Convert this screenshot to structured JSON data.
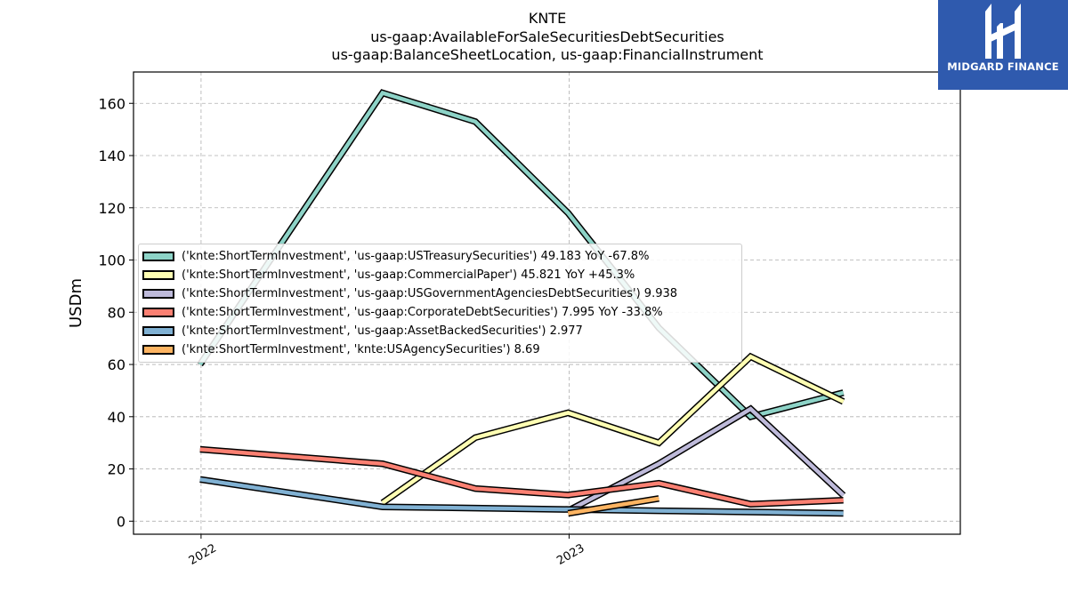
{
  "logo": {
    "text": "MIDGARD FINANCE"
  },
  "chart_data": {
    "type": "line",
    "title": "KNTE",
    "subtitle_lines": [
      "us-gaap:AvailableForSaleSecuritiesDebtSecurities",
      "us-gaap:BalanceSheetLocation, us-gaap:FinancialInstrument"
    ],
    "xlabel": "",
    "ylabel": "USDm",
    "ylim": [
      -5,
      172
    ],
    "xlim": [
      "2021-10-26",
      "2024-01-24"
    ],
    "yticks": [
      0,
      20,
      40,
      60,
      80,
      100,
      120,
      140,
      160
    ],
    "xticks": [
      {
        "label": "2022",
        "date": "2022-01-01"
      },
      {
        "label": "2023",
        "date": "2023-01-01"
      }
    ],
    "grid": true,
    "legend_position": "center-left",
    "series": [
      {
        "name": "('knte:ShortTermInvestment', 'us-gaap:USTreasurySecurities') 49.183 YoY -67.8%",
        "color": "#8dd3c7",
        "points": [
          [
            "2021-12-31",
            60
          ],
          [
            "2022-06-30",
            164
          ],
          [
            "2022-09-30",
            153
          ],
          [
            "2022-12-31",
            118
          ],
          [
            "2023-03-31",
            74
          ],
          [
            "2023-06-30",
            40
          ],
          [
            "2023-09-30",
            49.2
          ]
        ]
      },
      {
        "name": "('knte:ShortTermInvestment', 'us-gaap:CommercialPaper') 45.821 YoY +45.3%",
        "color": "#ffffb3",
        "points": [
          [
            "2022-06-30",
            7
          ],
          [
            "2022-09-30",
            32
          ],
          [
            "2022-12-31",
            41.5
          ],
          [
            "2023-03-31",
            30
          ],
          [
            "2023-06-30",
            63
          ],
          [
            "2023-09-30",
            45.8
          ]
        ]
      },
      {
        "name": "('knte:ShortTermInvestment', 'us-gaap:USGovernmentAgenciesDebtSecurities') 9.938",
        "color": "#bebada",
        "points": [
          [
            "2022-12-31",
            4
          ],
          [
            "2023-03-31",
            22
          ],
          [
            "2023-06-30",
            43
          ],
          [
            "2023-09-30",
            9.9
          ]
        ]
      },
      {
        "name": "('knte:ShortTermInvestment', 'us-gaap:CorporateDebtSecurities') 7.995 YoY -33.8%",
        "color": "#fb8072",
        "points": [
          [
            "2021-12-31",
            27.5
          ],
          [
            "2022-06-30",
            22
          ],
          [
            "2022-09-30",
            12.5
          ],
          [
            "2022-12-31",
            10
          ],
          [
            "2023-03-31",
            14.5
          ],
          [
            "2023-06-30",
            6.5
          ],
          [
            "2023-09-30",
            8.0
          ]
        ]
      },
      {
        "name": "('knte:ShortTermInvestment', 'us-gaap:AssetBackedSecurities') 2.977",
        "color": "#80b1d3",
        "points": [
          [
            "2021-12-31",
            16
          ],
          [
            "2022-06-30",
            5.5
          ],
          [
            "2022-09-30",
            5
          ],
          [
            "2022-12-31",
            4.5
          ],
          [
            "2023-03-31",
            4
          ],
          [
            "2023-06-30",
            3.5
          ],
          [
            "2023-09-30",
            3.0
          ]
        ]
      },
      {
        "name": "('knte:ShortTermInvestment', 'knte:USAgencySecurities') 8.69",
        "color": "#fdb462",
        "points": [
          [
            "2022-12-31",
            3
          ],
          [
            "2023-03-31",
            8.7
          ]
        ]
      }
    ]
  }
}
